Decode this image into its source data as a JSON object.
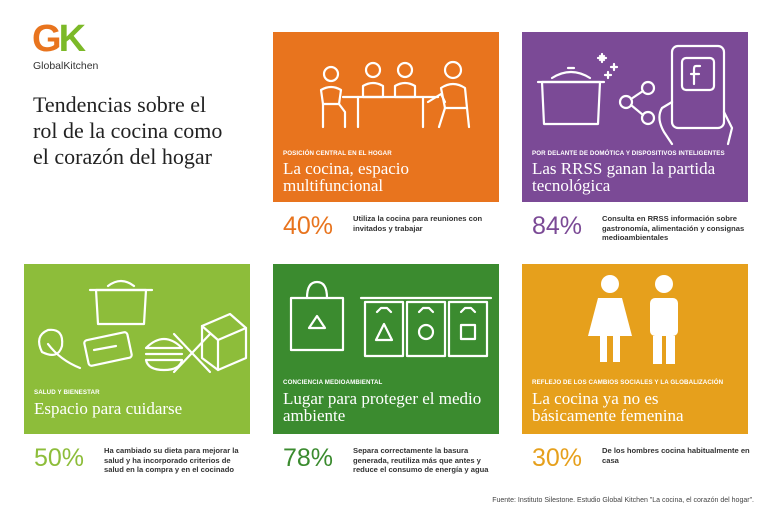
{
  "logo": {
    "mark_g": "G",
    "mark_k": "K",
    "name": "GlobalKitchen",
    "colors": {
      "g": "#e8741e",
      "k": "#7cb928"
    }
  },
  "headline": "Tendencias sobre el rol de la cocina como el corazón del hogar",
  "cards": [
    {
      "kicker": "Posición central en el hogar",
      "title": "La cocina, espacio multifuncional",
      "percent": "40%",
      "text": "Utiliza la cocina para reuniones con invitados y trabajar",
      "color": "#e8741e",
      "icon": "people-at-table-icon"
    },
    {
      "kicker": "Por delante de domótica y dispositivos inteligentes",
      "title": "Las RRSS ganan la partida tecnológica",
      "percent": "84%",
      "text": "Consulta en RRSS información sobre gastronomía, alimentación y consignas medioambientales",
      "color": "#7b4a96",
      "icon": "pot-share-phone-icon"
    },
    {
      "kicker": "Salud y bienestar",
      "title": "Espacio para cuidarse",
      "percent": "50%",
      "text": "Ha cambiado su dieta para mejorar la salud y ha incorporado criterios de salud en la compra y en el cocinado",
      "color": "#8dbd3a",
      "icon": "healthy-food-icon"
    },
    {
      "kicker": "Conciencia medioambiental",
      "title": "Lugar para proteger el medio ambiente",
      "percent": "78%",
      "text": "Separa correctamente la basura generada, reutiliza más que antes y reduce el consumo de energía y agua",
      "color": "#3b8b2f",
      "icon": "recycling-bins-icon"
    },
    {
      "kicker": "Reflejo de los cambios sociales y la globalización",
      "title": "La cocina ya no es básicamente femenina",
      "percent": "30%",
      "text": "De los hombres cocina habitualmente en casa",
      "color": "#e6a01c",
      "icon": "woman-man-icon"
    }
  ],
  "source": "Fuente: Instituto Silestone. Estudio Global Kitchen \"La cocina, el corazón del hogar\"."
}
